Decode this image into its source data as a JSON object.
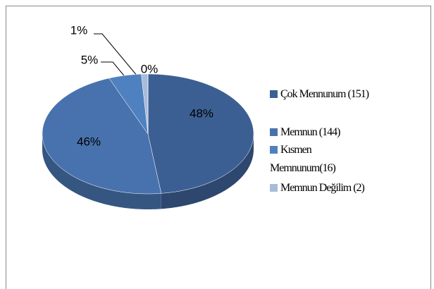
{
  "chart_data": {
    "type": "pie",
    "categories": [
      "Çok Mennunum (151)",
      "Memnun (144)",
      "Kısmen Memnunum(16)",
      "Memnun Değilim (2)",
      null
    ],
    "values": [
      48,
      46,
      5,
      1,
      0
    ],
    "value_labels": [
      "48%",
      "46%",
      "5%",
      "1%",
      "0%"
    ],
    "colors": [
      "#3c5f93",
      "#4872ad",
      "#4f81c0",
      "#a7bbdb",
      "#8fa8d0"
    ],
    "legend": "right"
  }
}
